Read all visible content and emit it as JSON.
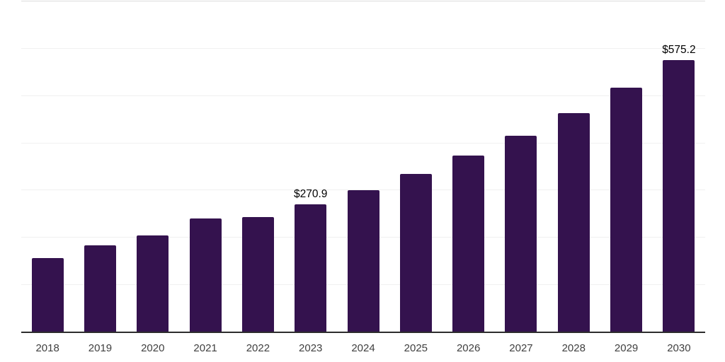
{
  "chart_data": {
    "type": "bar",
    "title": "",
    "categories": [
      "2018",
      "2019",
      "2020",
      "2021",
      "2022",
      "2023",
      "2024",
      "2025",
      "2026",
      "2027",
      "2028",
      "2029",
      "2030"
    ],
    "values": [
      156.4,
      183.3,
      204.4,
      240.2,
      243.3,
      270.9,
      301.4,
      334.6,
      373.5,
      415.6,
      463.4,
      517.3,
      575.2
    ],
    "data_labels": {
      "2023": "$270.9",
      "2030": "$575.2"
    },
    "xlabel": "",
    "ylabel": "",
    "ylim": [
      0,
      700
    ],
    "gridline_step": 100,
    "grid": "horizontal",
    "legend": "none",
    "colors": {
      "bar": "#34124e",
      "axis": "#2d2d2d",
      "tick_label": "#404040",
      "value_label": "#000000",
      "gridline": "#f0f0f0",
      "gridline_top": "#dcdcdc",
      "background": "#ffffff"
    }
  }
}
